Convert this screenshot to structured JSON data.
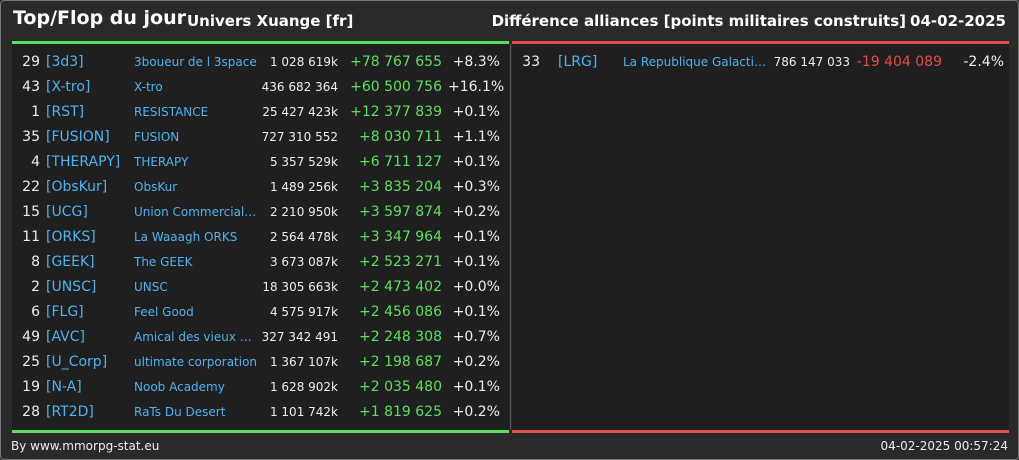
{
  "header": {
    "title": "Top/Flop du jour",
    "universe": "Univers Xuange [fr]",
    "subtitle": "Différence alliances [points militaires construits]",
    "date": "04-02-2025"
  },
  "colors": {
    "positive": "#5de05d",
    "negative": "#e84a4a",
    "tag": "#4fb3f0"
  },
  "top": [
    {
      "rank": "29",
      "tag": "[3d3]",
      "name": "3boueur de l 3space",
      "total": "1 028 619k",
      "diff": "+78 767 655",
      "pct": "+8.3%"
    },
    {
      "rank": "43",
      "tag": "[X-tro]",
      "name": "X-tro",
      "total": "436 682 364",
      "diff": "+60 500 756",
      "pct": "+16.1%"
    },
    {
      "rank": "1",
      "tag": "[RST]",
      "name": "RESISTANCE",
      "total": "25 427 423k",
      "diff": "+12 377 839",
      "pct": "+0.1%"
    },
    {
      "rank": "35",
      "tag": "[FUSION]",
      "name": "FUSION",
      "total": "727 310 552",
      "diff": "+8 030 711",
      "pct": "+1.1%"
    },
    {
      "rank": "4",
      "tag": "[THERAPY]",
      "name": "THERAPY",
      "total": "5 357 529k",
      "diff": "+6 711 127",
      "pct": "+0.1%"
    },
    {
      "rank": "22",
      "tag": "[ObsKur]",
      "name": "ObsKur",
      "total": "1 489 256k",
      "diff": "+3 835 204",
      "pct": "+0.3%"
    },
    {
      "rank": "15",
      "tag": "[UCG]",
      "name": "Union Commerciale...",
      "total": "2 210 950k",
      "diff": "+3 597 874",
      "pct": "+0.2%"
    },
    {
      "rank": "11",
      "tag": "[ORKS]",
      "name": "La Waaagh ORKS",
      "total": "2 564 478k",
      "diff": "+3 347 964",
      "pct": "+0.1%"
    },
    {
      "rank": "8",
      "tag": "[GEEK]",
      "name": "The GEEK",
      "total": "3 673 087k",
      "diff": "+2 523 271",
      "pct": "+0.1%"
    },
    {
      "rank": "2",
      "tag": "[UNSC]",
      "name": "UNSC",
      "total": "18 305 663k",
      "diff": "+2 473 402",
      "pct": "+0.0%"
    },
    {
      "rank": "6",
      "tag": "[FLG]",
      "name": "Feel Good",
      "total": "4 575 917k",
      "diff": "+2 456 086",
      "pct": "+0.1%"
    },
    {
      "rank": "49",
      "tag": "[AVC]",
      "name": "Amical des vieux con",
      "total": "327 342 491",
      "diff": "+2 248 308",
      "pct": "+0.7%"
    },
    {
      "rank": "25",
      "tag": "[U_Corp]",
      "name": "ultimate corporation",
      "total": "1 367 107k",
      "diff": "+2 198 687",
      "pct": "+0.2%"
    },
    {
      "rank": "19",
      "tag": "[N-A]",
      "name": "Noob Academy",
      "total": "1 628 902k",
      "diff": "+2 035 480",
      "pct": "+0.1%"
    },
    {
      "rank": "28",
      "tag": "[RT2D]",
      "name": "RaTs Du Desert",
      "total": "1 101 742k",
      "diff": "+1 819 625",
      "pct": "+0.2%"
    }
  ],
  "flop": [
    {
      "rank": "33",
      "tag": "[LRG]",
      "name": "La Republique Galactique",
      "total": "786 147 033",
      "diff": "-19 404 089",
      "pct": "-2.4%"
    }
  ],
  "footer": {
    "source": "By www.mmorpg-stat.eu",
    "timestamp": "04-02-2025 00:57:24"
  }
}
